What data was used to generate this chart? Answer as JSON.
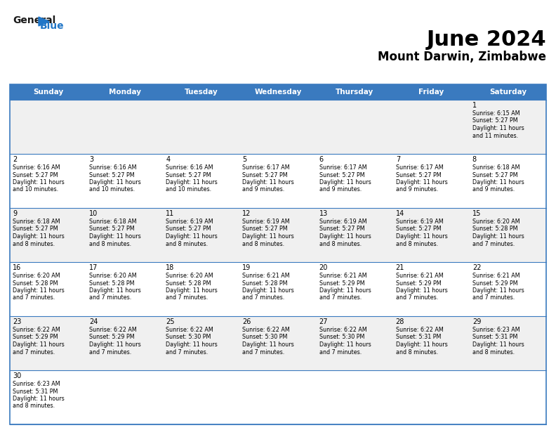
{
  "title": "June 2024",
  "subtitle": "Mount Darwin, Zimbabwe",
  "header_color": "#3a7abf",
  "header_text_color": "#ffffff",
  "cell_bg_even": "#f0f0f0",
  "cell_bg_odd": "#ffffff",
  "border_color": "#3a7abf",
  "text_color": "#000000",
  "white": "#ffffff",
  "days_of_week": [
    "Sunday",
    "Monday",
    "Tuesday",
    "Wednesday",
    "Thursday",
    "Friday",
    "Saturday"
  ],
  "logo_general_color": "#1a1a1a",
  "logo_blue_color": "#2176c7",
  "logo_triangle_color": "#2176c7",
  "calendar": [
    [
      null,
      null,
      null,
      null,
      null,
      null,
      {
        "day": "1",
        "sunrise": "6:15 AM",
        "sunset": "5:27 PM",
        "daylight_line1": "11 hours",
        "daylight_line2": "and 11 minutes."
      }
    ],
    [
      {
        "day": "2",
        "sunrise": "6:16 AM",
        "sunset": "5:27 PM",
        "daylight_line1": "11 hours",
        "daylight_line2": "and 10 minutes."
      },
      {
        "day": "3",
        "sunrise": "6:16 AM",
        "sunset": "5:27 PM",
        "daylight_line1": "11 hours",
        "daylight_line2": "and 10 minutes."
      },
      {
        "day": "4",
        "sunrise": "6:16 AM",
        "sunset": "5:27 PM",
        "daylight_line1": "11 hours",
        "daylight_line2": "and 10 minutes."
      },
      {
        "day": "5",
        "sunrise": "6:17 AM",
        "sunset": "5:27 PM",
        "daylight_line1": "11 hours",
        "daylight_line2": "and 9 minutes."
      },
      {
        "day": "6",
        "sunrise": "6:17 AM",
        "sunset": "5:27 PM",
        "daylight_line1": "11 hours",
        "daylight_line2": "and 9 minutes."
      },
      {
        "day": "7",
        "sunrise": "6:17 AM",
        "sunset": "5:27 PM",
        "daylight_line1": "11 hours",
        "daylight_line2": "and 9 minutes."
      },
      {
        "day": "8",
        "sunrise": "6:18 AM",
        "sunset": "5:27 PM",
        "daylight_line1": "11 hours",
        "daylight_line2": "and 9 minutes."
      }
    ],
    [
      {
        "day": "9",
        "sunrise": "6:18 AM",
        "sunset": "5:27 PM",
        "daylight_line1": "11 hours",
        "daylight_line2": "and 8 minutes."
      },
      {
        "day": "10",
        "sunrise": "6:18 AM",
        "sunset": "5:27 PM",
        "daylight_line1": "11 hours",
        "daylight_line2": "and 8 minutes."
      },
      {
        "day": "11",
        "sunrise": "6:19 AM",
        "sunset": "5:27 PM",
        "daylight_line1": "11 hours",
        "daylight_line2": "and 8 minutes."
      },
      {
        "day": "12",
        "sunrise": "6:19 AM",
        "sunset": "5:27 PM",
        "daylight_line1": "11 hours",
        "daylight_line2": "and 8 minutes."
      },
      {
        "day": "13",
        "sunrise": "6:19 AM",
        "sunset": "5:27 PM",
        "daylight_line1": "11 hours",
        "daylight_line2": "and 8 minutes."
      },
      {
        "day": "14",
        "sunrise": "6:19 AM",
        "sunset": "5:27 PM",
        "daylight_line1": "11 hours",
        "daylight_line2": "and 8 minutes."
      },
      {
        "day": "15",
        "sunrise": "6:20 AM",
        "sunset": "5:28 PM",
        "daylight_line1": "11 hours",
        "daylight_line2": "and 7 minutes."
      }
    ],
    [
      {
        "day": "16",
        "sunrise": "6:20 AM",
        "sunset": "5:28 PM",
        "daylight_line1": "11 hours",
        "daylight_line2": "and 7 minutes."
      },
      {
        "day": "17",
        "sunrise": "6:20 AM",
        "sunset": "5:28 PM",
        "daylight_line1": "11 hours",
        "daylight_line2": "and 7 minutes."
      },
      {
        "day": "18",
        "sunrise": "6:20 AM",
        "sunset": "5:28 PM",
        "daylight_line1": "11 hours",
        "daylight_line2": "and 7 minutes."
      },
      {
        "day": "19",
        "sunrise": "6:21 AM",
        "sunset": "5:28 PM",
        "daylight_line1": "11 hours",
        "daylight_line2": "and 7 minutes."
      },
      {
        "day": "20",
        "sunrise": "6:21 AM",
        "sunset": "5:29 PM",
        "daylight_line1": "11 hours",
        "daylight_line2": "and 7 minutes."
      },
      {
        "day": "21",
        "sunrise": "6:21 AM",
        "sunset": "5:29 PM",
        "daylight_line1": "11 hours",
        "daylight_line2": "and 7 minutes."
      },
      {
        "day": "22",
        "sunrise": "6:21 AM",
        "sunset": "5:29 PM",
        "daylight_line1": "11 hours",
        "daylight_line2": "and 7 minutes."
      }
    ],
    [
      {
        "day": "23",
        "sunrise": "6:22 AM",
        "sunset": "5:29 PM",
        "daylight_line1": "11 hours",
        "daylight_line2": "and 7 minutes."
      },
      {
        "day": "24",
        "sunrise": "6:22 AM",
        "sunset": "5:29 PM",
        "daylight_line1": "11 hours",
        "daylight_line2": "and 7 minutes."
      },
      {
        "day": "25",
        "sunrise": "6:22 AM",
        "sunset": "5:30 PM",
        "daylight_line1": "11 hours",
        "daylight_line2": "and 7 minutes."
      },
      {
        "day": "26",
        "sunrise": "6:22 AM",
        "sunset": "5:30 PM",
        "daylight_line1": "11 hours",
        "daylight_line2": "and 7 minutes."
      },
      {
        "day": "27",
        "sunrise": "6:22 AM",
        "sunset": "5:30 PM",
        "daylight_line1": "11 hours",
        "daylight_line2": "and 7 minutes."
      },
      {
        "day": "28",
        "sunrise": "6:22 AM",
        "sunset": "5:31 PM",
        "daylight_line1": "11 hours",
        "daylight_line2": "and 8 minutes."
      },
      {
        "day": "29",
        "sunrise": "6:23 AM",
        "sunset": "5:31 PM",
        "daylight_line1": "11 hours",
        "daylight_line2": "and 8 minutes."
      }
    ],
    [
      {
        "day": "30",
        "sunrise": "6:23 AM",
        "sunset": "5:31 PM",
        "daylight_line1": "11 hours",
        "daylight_line2": "and 8 minutes."
      },
      null,
      null,
      null,
      null,
      null,
      null
    ]
  ]
}
